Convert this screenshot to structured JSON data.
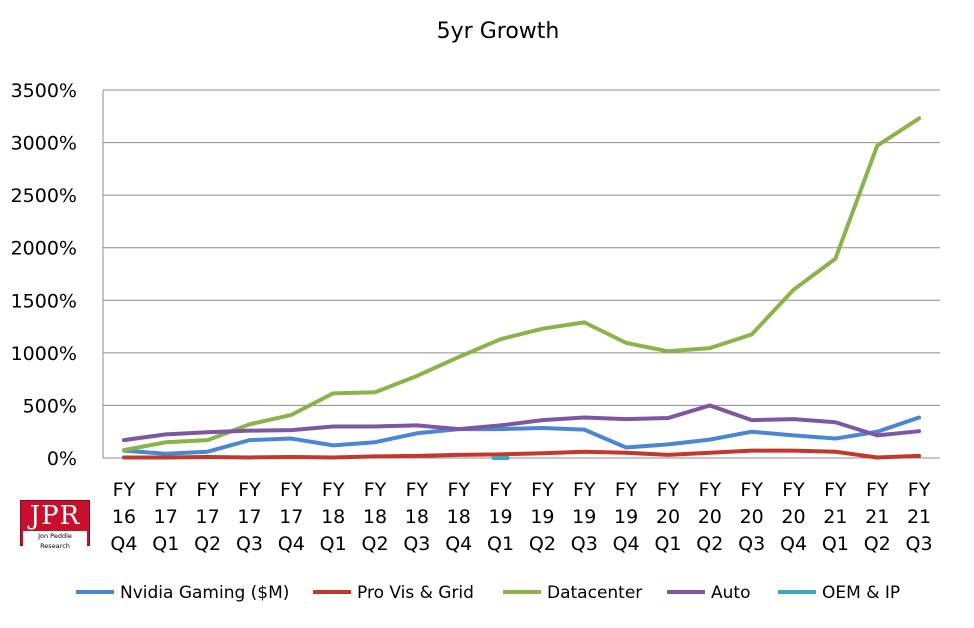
{
  "chart_data": {
    "type": "line",
    "title": "5yr Growth",
    "y_ticks": [
      "0%",
      "500%",
      "1000%",
      "1500%",
      "2000%",
      "2500%",
      "3000%",
      "3500%"
    ],
    "ylim": [
      0,
      3500
    ],
    "grid": true,
    "legend_position": "bottom",
    "categories": [
      [
        "FY",
        "16",
        "Q4"
      ],
      [
        "FY",
        "17",
        "Q1"
      ],
      [
        "FY",
        "17",
        "Q2"
      ],
      [
        "FY",
        "17",
        "Q3"
      ],
      [
        "FY",
        "17",
        "Q4"
      ],
      [
        "FY",
        "18",
        "Q1"
      ],
      [
        "FY",
        "18",
        "Q2"
      ],
      [
        "FY",
        "18",
        "Q3"
      ],
      [
        "FY",
        "18",
        "Q4"
      ],
      [
        "FY",
        "19",
        "Q1"
      ],
      [
        "FY",
        "19",
        "Q2"
      ],
      [
        "FY",
        "19",
        "Q3"
      ],
      [
        "FY",
        "19",
        "Q4"
      ],
      [
        "FY",
        "20",
        "Q1"
      ],
      [
        "FY",
        "20",
        "Q2"
      ],
      [
        "FY",
        "20",
        "Q3"
      ],
      [
        "FY",
        "20",
        "Q4"
      ],
      [
        "FY",
        "21",
        "Q1"
      ],
      [
        "FY",
        "21",
        "Q2"
      ],
      [
        "FY",
        "21",
        "Q3"
      ]
    ],
    "series": [
      {
        "name": "Nvidia Gaming ($M)",
        "color": "#4a86d4",
        "values": [
          70,
          40,
          60,
          170,
          185,
          120,
          150,
          235,
          275,
          275,
          285,
          270,
          100,
          130,
          175,
          250,
          215,
          185,
          250,
          385
        ]
      },
      {
        "name": "Pro Vis & Grid",
        "color": "#c0392b",
        "values": [
          5,
          5,
          10,
          5,
          10,
          5,
          15,
          20,
          30,
          35,
          45,
          60,
          50,
          30,
          50,
          70,
          70,
          60,
          5,
          20
        ]
      },
      {
        "name": "Datacenter",
        "color": "#8ab34a",
        "values": [
          75,
          150,
          170,
          320,
          410,
          615,
          625,
          780,
          960,
          1130,
          1230,
          1290,
          1095,
          1015,
          1045,
          1175,
          1600,
          1895,
          2970,
          3230
        ]
      },
      {
        "name": "Auto",
        "color": "#7e57a2",
        "values": [
          170,
          225,
          245,
          260,
          265,
          300,
          300,
          310,
          275,
          310,
          360,
          385,
          370,
          380,
          500,
          360,
          370,
          340,
          215,
          255
        ]
      },
      {
        "name": "OEM & IP",
        "color": "#3aa8c1",
        "values": [
          null,
          null,
          null,
          null,
          null,
          null,
          null,
          null,
          null,
          0,
          null,
          null,
          null,
          null,
          null,
          null,
          null,
          null,
          null,
          null
        ]
      }
    ]
  },
  "logo": {
    "big": "JPR",
    "small": "Jon Peddie Research"
  }
}
